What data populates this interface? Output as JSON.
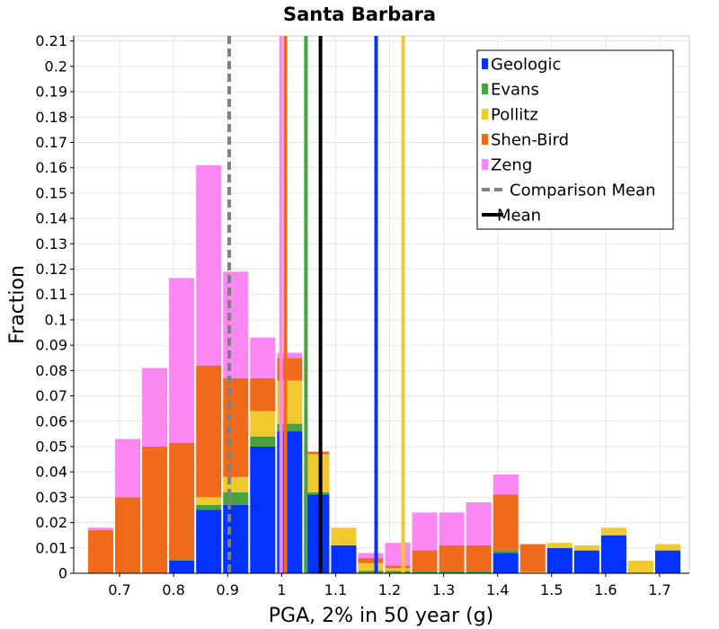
{
  "chart_data": {
    "type": "bar",
    "subtype": "stacked-histogram",
    "title": "Santa Barbara",
    "xlabel": "PGA, 2% in 50 year (g)",
    "ylabel": "Fraction",
    "xlim": [
      0.615,
      1.755
    ],
    "ylim": [
      0,
      0.212
    ],
    "x_ticks": [
      0.7,
      0.8,
      0.9,
      1,
      1.1,
      1.2,
      1.3,
      1.4,
      1.5,
      1.6,
      1.7
    ],
    "x_tick_labels": [
      "0.7",
      "0.8",
      "0.9",
      "1",
      "1.1",
      "1.2",
      "1.3",
      "1.4",
      "1.5",
      "1.6",
      "1.7"
    ],
    "y_ticks": [
      0,
      0.01,
      0.02,
      0.03,
      0.04,
      0.05,
      0.06,
      0.07,
      0.08,
      0.09,
      0.1,
      0.11,
      0.12,
      0.13,
      0.14,
      0.15,
      0.16,
      0.17,
      0.18,
      0.19,
      0.2,
      0.21
    ],
    "y_tick_labels": [
      "0",
      "0.01",
      "0.02",
      "0.03",
      "0.04",
      "0.05",
      "0.06",
      "0.07",
      "0.08",
      "0.09",
      "0.1",
      "0.11",
      "0.12",
      "0.13",
      "0.14",
      "0.15",
      "0.16",
      "0.17",
      "0.18",
      "0.19",
      "0.2",
      "0.21"
    ],
    "grid": true,
    "legend_position": "top-right",
    "bin_width": 0.05,
    "bin_centers": [
      0.665,
      0.715,
      0.765,
      0.815,
      0.865,
      0.915,
      0.965,
      1.015,
      1.065,
      1.115,
      1.165,
      1.215,
      1.265,
      1.315,
      1.365,
      1.415,
      1.465,
      1.515,
      1.565,
      1.615,
      1.665,
      1.715
    ],
    "series": [
      {
        "name": "Geologic",
        "color": "#0433ff",
        "values": [
          0,
          0,
          0,
          0.005,
          0.025,
          0.027,
          0.05,
          0.056,
          0.031,
          0.011,
          0,
          0,
          0,
          0,
          0,
          0.008,
          0,
          0.01,
          0.009,
          0.015,
          0,
          0.009
        ]
      },
      {
        "name": "Evans",
        "color": "#48a23f",
        "values": [
          0,
          0,
          0,
          0.0005,
          0.002,
          0.005,
          0.004,
          0.003,
          0.001,
          0,
          0.001,
          0.001,
          0.001,
          0.001,
          0.001,
          0.001,
          0,
          0,
          0,
          0,
          0,
          0
        ]
      },
      {
        "name": "Pollitz",
        "color": "#f0c92f",
        "values": [
          0,
          0,
          0,
          0,
          0.003,
          0.006,
          0.01,
          0.017,
          0.015,
          0.007,
          0.003,
          0.001,
          0,
          0,
          0,
          0,
          0.0005,
          0.002,
          0.002,
          0.003,
          0.005,
          0.0025
        ]
      },
      {
        "name": "Shen-Bird",
        "color": "#f06a1b",
        "values": [
          0.017,
          0.03,
          0.05,
          0.046,
          0.052,
          0.039,
          0.013,
          0.009,
          0.001,
          0,
          0.002,
          0.001,
          0.008,
          0.01,
          0.01,
          0.022,
          0.011,
          0,
          0,
          0,
          0,
          0
        ]
      },
      {
        "name": "Zeng",
        "color": "#fb87f2",
        "values": [
          0.001,
          0.023,
          0.031,
          0.065,
          0.079,
          0.042,
          0.016,
          0.002,
          0,
          0,
          0.002,
          0.009,
          0.015,
          0.013,
          0.017,
          0.008,
          0,
          0,
          0,
          0,
          0,
          0
        ]
      }
    ],
    "vertical_lines": [
      {
        "name": "Geologic",
        "x": 1.175,
        "color": "#0433ff",
        "style": "solid"
      },
      {
        "name": "Evans",
        "x": 1.045,
        "color": "#48a23f",
        "style": "solid"
      },
      {
        "name": "Pollitz",
        "x": 1.225,
        "color": "#f0c92f",
        "style": "solid"
      },
      {
        "name": "Shen-Bird",
        "x": 1.007,
        "color": "#f06a1b",
        "style": "solid"
      },
      {
        "name": "Zeng",
        "x": 0.999,
        "color": "#fb87f2",
        "style": "solid"
      },
      {
        "name": "Comparison Mean",
        "x": 0.903,
        "color": "#808080",
        "style": "dashed"
      },
      {
        "name": "Mean",
        "x": 1.072,
        "color": "#000000",
        "style": "solid"
      }
    ],
    "legend": [
      {
        "label": "Geologic",
        "color": "#0433ff",
        "kind": "box"
      },
      {
        "label": "Evans",
        "color": "#48a23f",
        "kind": "box"
      },
      {
        "label": "Pollitz",
        "color": "#f0c92f",
        "kind": "box"
      },
      {
        "label": "Shen-Bird",
        "color": "#f06a1b",
        "kind": "box"
      },
      {
        "label": "Zeng",
        "color": "#fb87f2",
        "kind": "box"
      },
      {
        "label": "Comparison Mean",
        "color": "#808080",
        "kind": "dashed-line"
      },
      {
        "label": "Mean",
        "color": "#000000",
        "kind": "line"
      }
    ]
  }
}
